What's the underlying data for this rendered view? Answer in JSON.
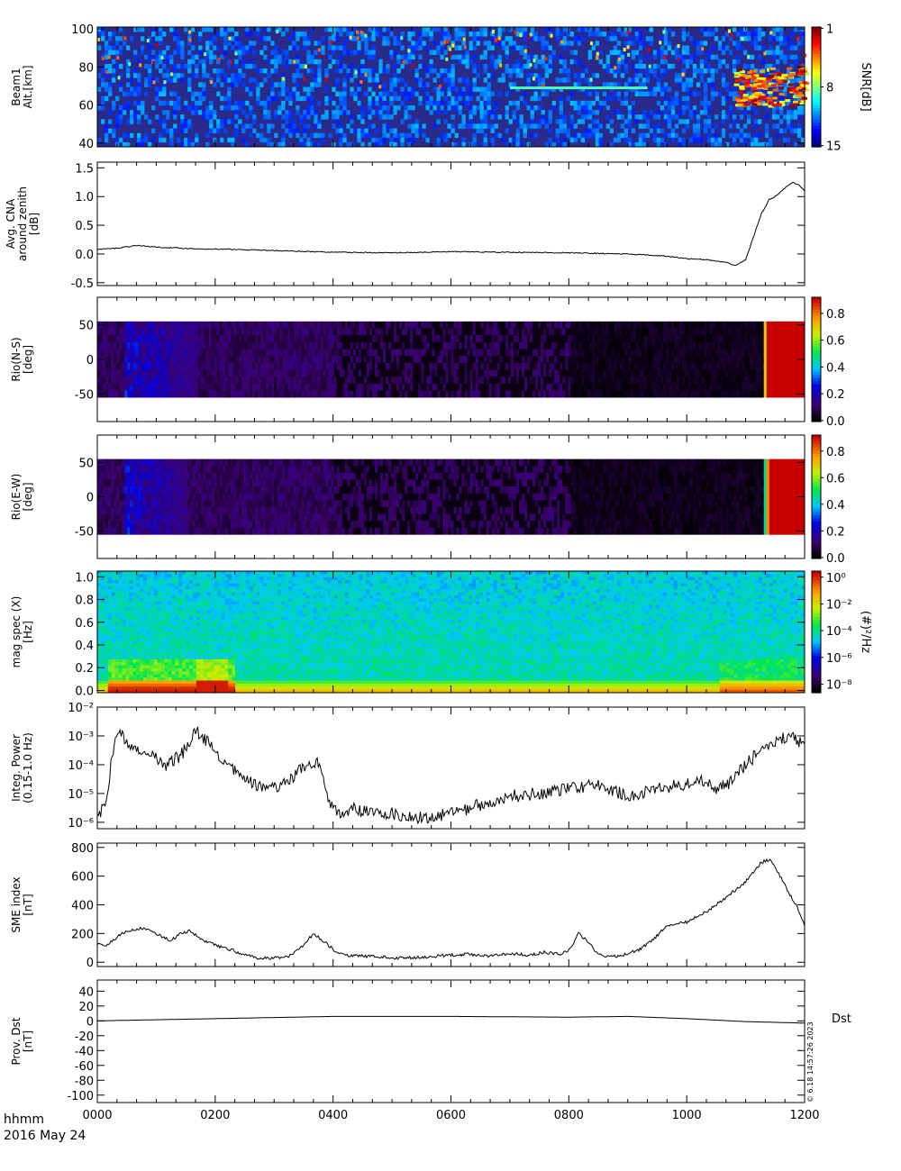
{
  "footer": {
    "time_label": "hhmm",
    "date_label": "2016 May 24",
    "stamp": "© 6.18 14:57:26 2023"
  },
  "x_axis": {
    "range": [
      0,
      720
    ],
    "ticks": [
      {
        "value": 0,
        "label": "0000"
      },
      {
        "value": 120,
        "label": "0200"
      },
      {
        "value": 240,
        "label": "0400"
      },
      {
        "value": 360,
        "label": "0600"
      },
      {
        "value": 480,
        "label": "0800"
      },
      {
        "value": 600,
        "label": "1000"
      },
      {
        "value": 720,
        "label": "1200"
      }
    ]
  },
  "colors": {
    "spectrogram_background": "#2a2a8a",
    "absorption_dark": "#0b0414",
    "absorption_purple": "#3c1a6e",
    "absorption_red": "#b51400",
    "line": "#000000"
  },
  "chart_data": [
    {
      "type": "heatmap",
      "ylabel": "Beam1\nAlt.[km]",
      "ylim": [
        38,
        101
      ],
      "yticks": [
        40,
        60,
        80,
        100
      ],
      "colorbar": {
        "label": "SNR[dB]",
        "range": [
          1,
          15
        ],
        "ticks": [
          "1",
          "8",
          "15"
        ]
      },
      "features": [
        {
          "description_value": "weak layer",
          "x_range": [
            420,
            560
          ],
          "y": 69
        },
        {
          "description_value": "strong echo",
          "x_range": [
            648,
            720
          ],
          "y_range": [
            60,
            80
          ]
        }
      ]
    },
    {
      "type": "line",
      "ylabel": "Avg. CNA\naround zenith\n[dB]",
      "ylim": [
        -0.55,
        1.6
      ],
      "yticks": [
        -0.5,
        0.0,
        0.5,
        1.0,
        1.5
      ],
      "ytick_labels": [
        "-0.5",
        "0.0",
        "0.5",
        "1.0",
        "1.5"
      ],
      "series": [
        {
          "x": [
            0,
            20,
            40,
            60,
            100,
            140,
            180,
            240,
            300,
            360,
            420,
            480,
            540,
            580,
            600,
            620,
            640,
            650,
            660,
            668,
            676,
            684,
            690,
            700,
            708,
            714,
            720
          ],
          "values": [
            0.08,
            0.1,
            0.15,
            0.12,
            0.09,
            0.08,
            0.06,
            0.03,
            0.02,
            0.04,
            0.03,
            0.02,
            0.0,
            -0.04,
            -0.08,
            -0.1,
            -0.15,
            -0.2,
            -0.1,
            0.3,
            0.7,
            0.95,
            1.0,
            1.15,
            1.25,
            1.2,
            1.1
          ]
        }
      ]
    },
    {
      "type": "heatmap",
      "ylabel": "Rio(N-S)\n[deg]",
      "ylim": [
        -90,
        90
      ],
      "yticks": [
        -50,
        0,
        50
      ],
      "data_ylim": [
        -55,
        55
      ],
      "colorbar": {
        "label": "",
        "range": [
          0.0,
          0.9
        ],
        "ticks": [
          "0.0",
          "0.2",
          "0.4",
          "0.6",
          "0.8"
        ]
      },
      "features": [
        {
          "description_value": "moderate absorption",
          "x_range": [
            25,
            100
          ],
          "level": 0.2
        },
        {
          "description_value": "strong absorption",
          "x_range": [
            676,
            720
          ],
          "level": 0.9
        }
      ]
    },
    {
      "type": "heatmap",
      "ylabel": "Rio(E-W)\n[deg]",
      "ylim": [
        -90,
        90
      ],
      "yticks": [
        -50,
        0,
        50
      ],
      "data_ylim": [
        -55,
        55
      ],
      "colorbar": {
        "label": "",
        "range": [
          0.0,
          0.9
        ],
        "ticks": [
          "0.0",
          "0.2",
          "0.4",
          "0.6",
          "0.8"
        ]
      },
      "features": [
        {
          "description_value": "moderate absorption",
          "x_range": [
            25,
            90
          ],
          "level": 0.2
        },
        {
          "description_value": "strong absorption",
          "x_range": [
            678,
            720
          ],
          "level": 0.9
        }
      ]
    },
    {
      "type": "heatmap",
      "ylabel": "mag spec (X)\n[Hz]",
      "ylim": [
        -0.02,
        1.05
      ],
      "yticks": [
        0.0,
        0.2,
        0.4,
        0.6,
        0.8,
        1.0
      ],
      "ytick_labels": [
        "0.0",
        "0.2",
        "0.4",
        "0.6",
        "0.8",
        "1.0"
      ],
      "colorbar": {
        "label": "(#)²/Hz",
        "scale": "log",
        "range": [
          1e-09,
          1
        ],
        "ticks": [
          "10⁰",
          "10⁻²",
          "10⁻⁴",
          "10⁻⁶",
          "10⁻⁸"
        ]
      }
    },
    {
      "type": "line",
      "ylabel": "Integ. Power\n(0.15-1.0 Hz)",
      "yscale": "log",
      "ylim": [
        6e-07,
        0.01
      ],
      "yticks": [
        1e-06,
        1e-05,
        0.0001,
        0.001,
        0.01
      ],
      "ytick_labels": [
        "10⁻⁶",
        "10⁻⁵",
        "10⁻⁴",
        "10⁻³",
        "10⁻²"
      ],
      "series": [
        {
          "x": [
            0,
            8,
            15,
            22,
            30,
            40,
            55,
            70,
            85,
            100,
            115,
            125,
            140,
            155,
            170,
            190,
            210,
            225,
            235,
            245,
            260,
            280,
            300,
            330,
            360,
            390,
            420,
            450,
            480,
            510,
            540,
            570,
            600,
            615,
            630,
            645,
            660,
            675,
            690,
            705,
            720
          ],
          "values": [
            2e-06,
            3e-06,
            0.0002,
            0.0015,
            0.0006,
            0.0003,
            0.0002,
            0.0001,
            0.0002,
            0.0015,
            0.0005,
            0.00015,
            6e-05,
            2.5e-05,
            1.5e-05,
            2e-05,
            8e-05,
            0.00012,
            5e-06,
            2e-06,
            3e-06,
            2e-06,
            2e-06,
            1.5e-06,
            2e-06,
            4e-06,
            8e-06,
            1e-05,
            1.5e-05,
            2e-05,
            8e-06,
            1.5e-05,
            2e-05,
            3e-05,
            1.5e-05,
            2.5e-05,
            0.0001,
            0.0003,
            0.0007,
            0.001,
            0.0005
          ]
        }
      ]
    },
    {
      "type": "line",
      "ylabel": "SME index\n[nT]",
      "ylim": [
        -30,
        830
      ],
      "yticks": [
        0,
        200,
        400,
        600,
        800
      ],
      "series": [
        {
          "x": [
            0,
            8,
            15,
            30,
            45,
            60,
            75,
            85,
            95,
            105,
            120,
            135,
            150,
            165,
            180,
            195,
            210,
            220,
            230,
            245,
            260,
            280,
            300,
            330,
            360,
            380,
            400,
            420,
            440,
            455,
            470,
            480,
            490,
            500,
            510,
            530,
            550,
            565,
            580,
            600,
            620,
            640,
            660,
            675,
            685,
            695,
            705,
            715,
            720
          ],
          "values": [
            130,
            110,
            150,
            220,
            240,
            200,
            150,
            200,
            220,
            160,
            120,
            90,
            50,
            25,
            30,
            40,
            120,
            200,
            150,
            60,
            45,
            40,
            30,
            35,
            50,
            55,
            45,
            60,
            50,
            70,
            55,
            80,
            200,
            140,
            50,
            40,
            80,
            150,
            260,
            280,
            350,
            450,
            560,
            690,
            720,
            600,
            470,
            350,
            250
          ]
        }
      ]
    },
    {
      "type": "line",
      "ylabel": "Prov. Dst\n[nT]",
      "ylim": [
        -110,
        55
      ],
      "yticks": [
        -100,
        -80,
        -60,
        -40,
        -20,
        0,
        20,
        40
      ],
      "legend": "Dst",
      "series": [
        {
          "name": "Dst",
          "x": [
            0,
            120,
            240,
            360,
            480,
            540,
            600,
            660,
            720
          ],
          "values": [
            0,
            3,
            6,
            6,
            5,
            6,
            3,
            -1,
            -3
          ]
        }
      ]
    }
  ]
}
